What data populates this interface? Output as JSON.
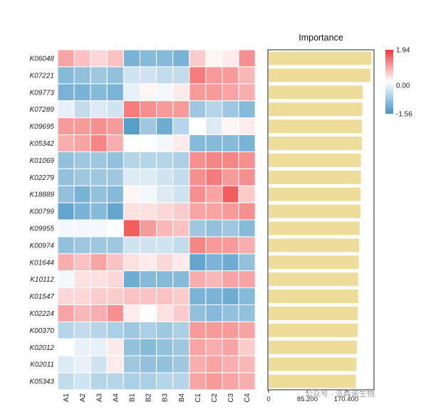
{
  "chart_data": {
    "type": "heatmap",
    "rows": [
      "K06048",
      "K07221",
      "K09773",
      "K07289",
      "K09695",
      "K05342",
      "K01069",
      "K02279",
      "K18889",
      "K00799",
      "K09955",
      "K00974",
      "K01644",
      "K10112",
      "K01547",
      "K02224",
      "K00370",
      "K02012",
      "K02011",
      "K05343"
    ],
    "columns": [
      "A1",
      "A2",
      "A3",
      "A4",
      "B1",
      "B2",
      "B3",
      "B4",
      "C1",
      "C2",
      "C3",
      "C4"
    ],
    "values": [
      [
        0.9,
        0.6,
        0.4,
        0.6,
        -1.1,
        -1.0,
        -1.0,
        -1.1,
        0.5,
        0.1,
        0.2,
        1.1
      ],
      [
        -1.0,
        -0.9,
        -0.8,
        -0.9,
        -0.4,
        -0.4,
        -0.5,
        -0.5,
        1.3,
        1.0,
        1.0,
        0.7
      ],
      [
        -1.1,
        -1.1,
        -1.0,
        -1.1,
        -0.2,
        0.1,
        -0.1,
        0.2,
        1.0,
        1.0,
        0.9,
        0.8
      ],
      [
        -0.2,
        -0.5,
        -0.3,
        -0.4,
        1.3,
        1.1,
        1.0,
        1.0,
        -0.8,
        -0.6,
        -0.8,
        -1.0
      ],
      [
        1.0,
        1.0,
        1.1,
        1.0,
        -1.4,
        -0.8,
        -1.2,
        -0.6,
        0.0,
        -0.3,
        0.1,
        0.2
      ],
      [
        0.8,
        0.9,
        1.2,
        0.8,
        0.0,
        0.0,
        -0.1,
        0.2,
        -1.0,
        -1.0,
        -1.0,
        -1.1
      ],
      [
        -0.9,
        -0.8,
        -0.8,
        -0.9,
        -0.6,
        -0.6,
        -0.6,
        -0.7,
        1.1,
        1.2,
        1.2,
        1.1
      ],
      [
        -0.9,
        -0.8,
        -0.8,
        -0.8,
        -0.3,
        -0.3,
        -0.4,
        -0.5,
        1.1,
        1.3,
        1.0,
        1.1
      ],
      [
        -0.9,
        -1.1,
        -0.9,
        -1.0,
        0.1,
        -0.1,
        -0.3,
        -0.4,
        1.1,
        0.9,
        1.6,
        0.5
      ],
      [
        -1.3,
        -1.1,
        -1.0,
        -1.3,
        0.3,
        0.3,
        0.4,
        0.5,
        0.9,
        0.9,
        1.0,
        1.1
      ],
      [
        -0.1,
        -0.1,
        -0.1,
        0.0,
        1.6,
        1.0,
        0.7,
        0.6,
        -0.8,
        -0.9,
        -0.8,
        -1.0
      ],
      [
        -0.9,
        -0.8,
        -0.8,
        -0.8,
        -0.4,
        -0.4,
        -0.4,
        -0.5,
        1.2,
        1.0,
        1.0,
        0.8
      ],
      [
        0.8,
        0.6,
        0.9,
        0.6,
        0.3,
        0.2,
        0.4,
        0.2,
        -1.3,
        -1.1,
        -1.2,
        -0.9
      ],
      [
        -0.1,
        0.3,
        0.3,
        0.4,
        -1.2,
        -1.0,
        -1.0,
        -1.0,
        0.8,
        0.7,
        0.9,
        0.9
      ],
      [
        0.4,
        0.4,
        0.5,
        0.5,
        0.6,
        0.6,
        0.6,
        0.5,
        -1.1,
        -1.1,
        -1.2,
        -1.0
      ],
      [
        0.9,
        0.7,
        0.8,
        1.1,
        0.2,
        0.0,
        0.3,
        0.5,
        -0.9,
        -1.0,
        -0.9,
        -0.9
      ],
      [
        -0.6,
        -0.5,
        -0.6,
        -0.7,
        -0.8,
        -0.7,
        -0.8,
        -0.7,
        1.0,
        1.0,
        1.0,
        0.9
      ],
      [
        0.0,
        -0.2,
        -0.2,
        0.2,
        -0.9,
        -1.0,
        -0.9,
        -0.8,
        0.9,
        0.8,
        0.9,
        0.5
      ],
      [
        -0.3,
        -0.2,
        -0.4,
        0.2,
        -0.8,
        -0.9,
        -0.9,
        -0.8,
        0.8,
        0.9,
        0.8,
        0.7
      ],
      [
        -0.5,
        -0.4,
        -0.6,
        -0.6,
        -0.7,
        -0.7,
        -0.6,
        -0.6,
        0.9,
        1.0,
        0.9,
        0.8
      ]
    ],
    "color_scale": {
      "min": -1.56,
      "mid": 0.0,
      "max": 1.94,
      "min_color": "#4393c3",
      "mid_color": "#ffffff",
      "max_color": "#ef3b3b"
    },
    "legend_labels": [
      "1.94",
      "0.00",
      "-1.56"
    ],
    "bar_panel": {
      "type": "bar",
      "title": "Importance",
      "values": [
        226,
        224,
        207,
        206,
        205,
        205,
        203,
        203,
        202,
        202,
        200,
        199,
        198,
        197,
        197,
        196,
        196,
        194,
        193,
        192
      ],
      "xlim": [
        0,
        230
      ],
      "ticks": [
        "0",
        "85.200",
        "170.400"
      ],
      "tick_values": [
        0,
        85.2,
        170.4
      ],
      "bar_color": "#eedc9a"
    }
  },
  "watermark": "公众号 · 派森诺生物"
}
